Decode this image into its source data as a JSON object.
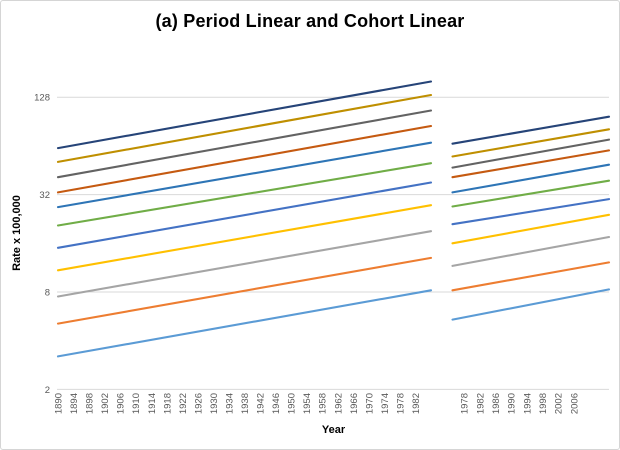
{
  "chart_data": {
    "type": "line",
    "title": "(a) Period Linear and Cohort Linear",
    "xlabel": "Year",
    "ylabel": "Rate x 100,000",
    "y_scale": "log4",
    "y_ticks": [
      2,
      8,
      32,
      128
    ],
    "ylim": [
      2,
      256
    ],
    "grid": true,
    "legend": "none",
    "tick_label_color": "#595959",
    "gridline_color": "#d9d9d9",
    "panels": [
      {
        "name": "period",
        "x_start_year": 1890,
        "x_end_year": 1986,
        "tick_years": [
          1890,
          1894,
          1898,
          1902,
          1906,
          1910,
          1914,
          1918,
          1922,
          1926,
          1930,
          1934,
          1938,
          1942,
          1946,
          1950,
          1954,
          1958,
          1962,
          1966,
          1970,
          1974,
          1978,
          1982
        ],
        "series": [
          {
            "name": "line-1",
            "color": "#264478",
            "start": 62.0,
            "end": 160.0
          },
          {
            "name": "line-2",
            "color": "#BF8F00",
            "start": 51.0,
            "end": 132.0
          },
          {
            "name": "line-3",
            "color": "#636363",
            "start": 41.0,
            "end": 106.0
          },
          {
            "name": "line-4",
            "color": "#C55A11",
            "start": 33.0,
            "end": 85.0
          },
          {
            "name": "line-5",
            "color": "#2E75B6",
            "start": 26.8,
            "end": 67.0
          },
          {
            "name": "line-6",
            "color": "#70AD47",
            "start": 20.6,
            "end": 50.0
          },
          {
            "name": "line-7",
            "color": "#4472C4",
            "start": 15.0,
            "end": 38.0
          },
          {
            "name": "line-8",
            "color": "#FFC000",
            "start": 10.9,
            "end": 27.5
          },
          {
            "name": "line-9",
            "color": "#A5A5A5",
            "start": 7.5,
            "end": 19.0
          },
          {
            "name": "line-10",
            "color": "#ED7D31",
            "start": 5.1,
            "end": 13.0
          },
          {
            "name": "line-11",
            "color": "#5B9BD5",
            "start": 3.2,
            "end": 8.2
          }
        ]
      },
      {
        "name": "cohort",
        "x_start_year": 1975,
        "x_end_year": 2015,
        "tick_years": [
          1978,
          1982,
          1986,
          1990,
          1994,
          1998,
          2002,
          2006
        ],
        "series": [
          {
            "name": "line-1",
            "color": "#264478",
            "start": 66.0,
            "end": 97.0
          },
          {
            "name": "line-2",
            "color": "#BF8F00",
            "start": 55.0,
            "end": 81.0
          },
          {
            "name": "line-3",
            "color": "#636363",
            "start": 47.0,
            "end": 70.0
          },
          {
            "name": "line-4",
            "color": "#C55A11",
            "start": 41.0,
            "end": 60.0
          },
          {
            "name": "line-5",
            "color": "#2E75B6",
            "start": 33.0,
            "end": 49.0
          },
          {
            "name": "line-6",
            "color": "#70AD47",
            "start": 27.0,
            "end": 39.0
          },
          {
            "name": "line-7",
            "color": "#4472C4",
            "start": 21.0,
            "end": 30.0
          },
          {
            "name": "line-8",
            "color": "#FFC000",
            "start": 16.0,
            "end": 24.0
          },
          {
            "name": "line-9",
            "color": "#A5A5A5",
            "start": 11.6,
            "end": 17.5
          },
          {
            "name": "line-10",
            "color": "#ED7D31",
            "start": 8.2,
            "end": 12.2
          },
          {
            "name": "line-11",
            "color": "#5B9BD5",
            "start": 5.4,
            "end": 8.3
          }
        ]
      }
    ]
  }
}
